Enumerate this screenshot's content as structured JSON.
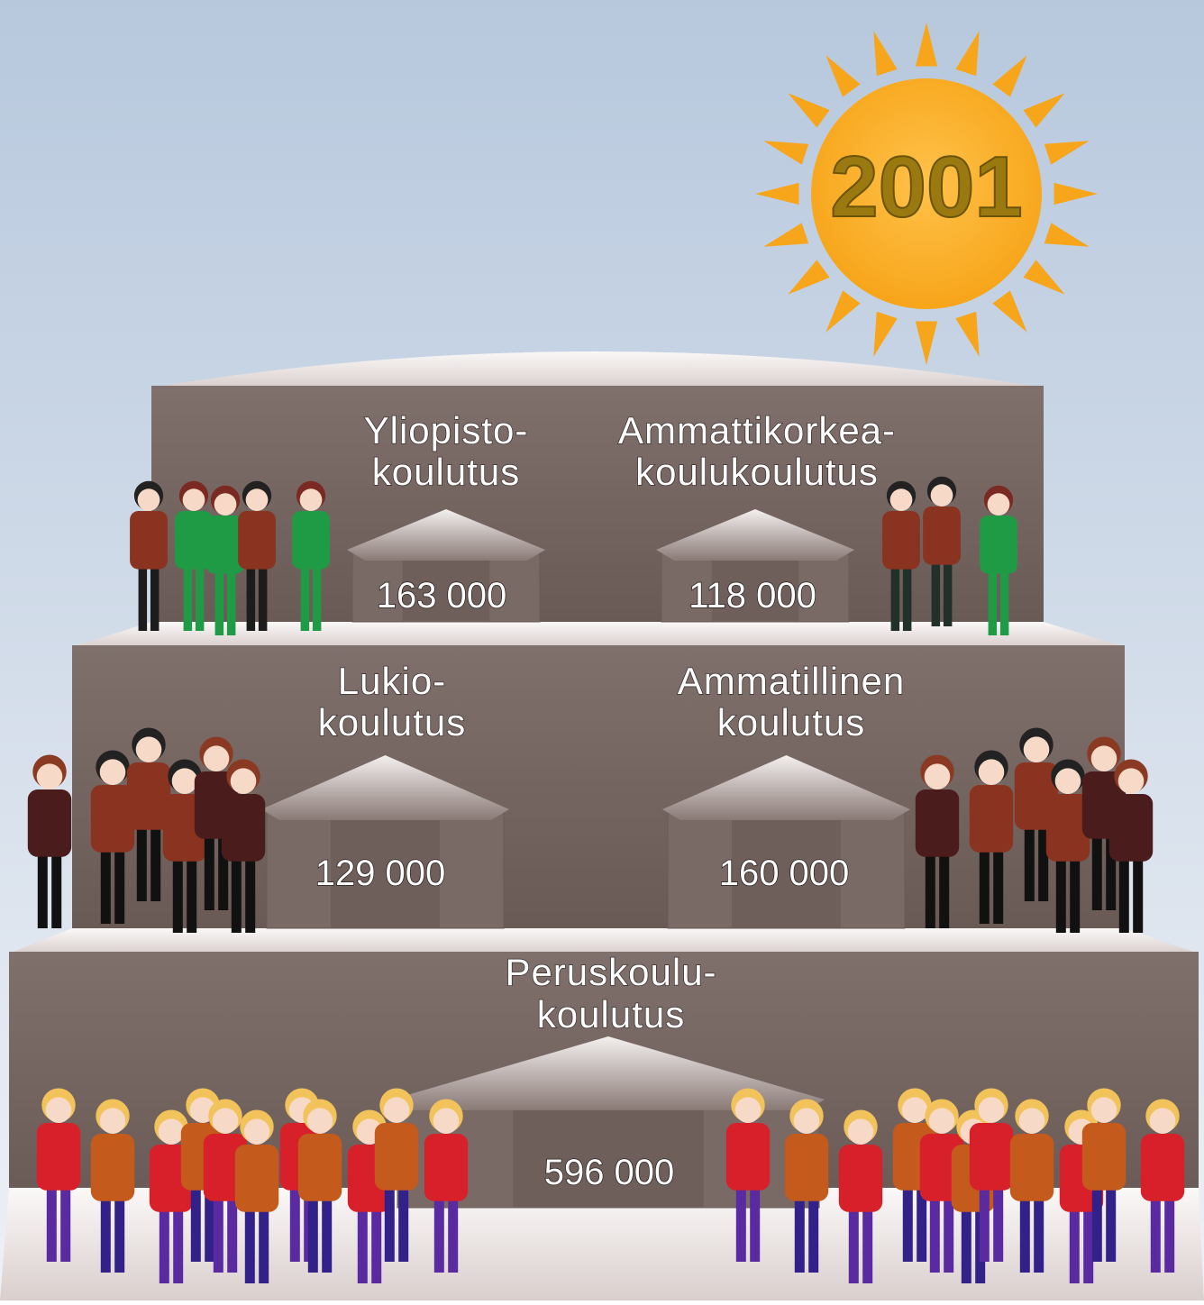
{
  "sun": {
    "label": "2001"
  },
  "levels": [
    {
      "label": [
        "Yliopisto-",
        "koulutus"
      ],
      "value": "163 000"
    },
    {
      "label": [
        "Ammattikorkea-",
        "koulukoulutus"
      ],
      "value": "118 000"
    },
    {
      "label": [
        "Lukio-",
        "koulutus"
      ],
      "value": "129 000"
    },
    {
      "label": [
        "Ammatillinen",
        "koulutus"
      ],
      "value": "160 000"
    },
    {
      "label": [
        "Peruskoulu-",
        "koulutus"
      ],
      "value": "596 000"
    }
  ]
}
